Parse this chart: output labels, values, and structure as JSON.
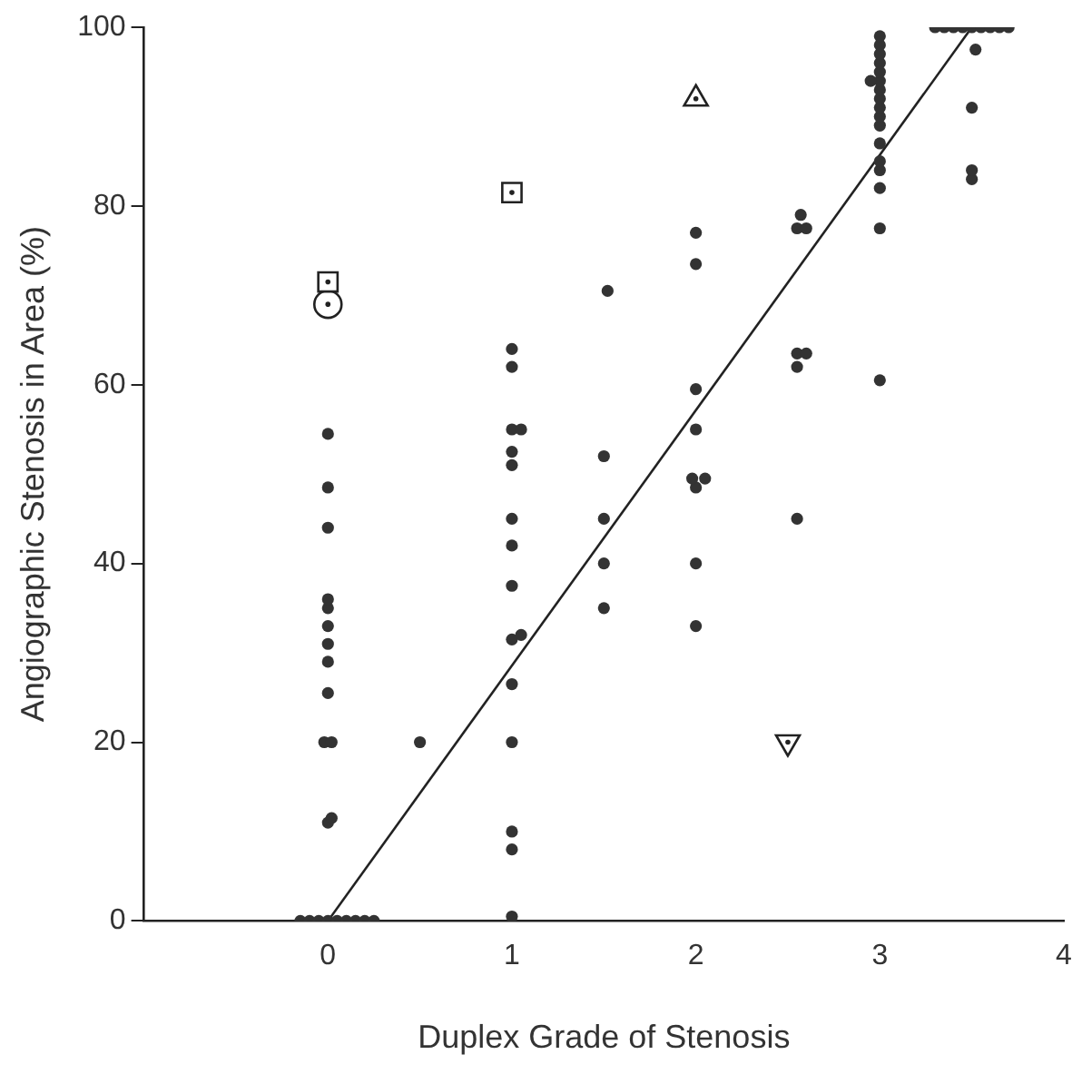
{
  "chart_data": {
    "type": "scatter",
    "xlabel": "Duplex Grade of Stenosis",
    "ylabel": "Angiographic Stenosis in Area (%)",
    "xlim": [
      -1,
      4
    ],
    "xticks": [
      0,
      1,
      2,
      3,
      4
    ],
    "ylim": [
      0,
      100
    ],
    "yticks": [
      0,
      20,
      40,
      60,
      80,
      100
    ],
    "grid": false,
    "legend": false,
    "series": [
      {
        "type": "scatter",
        "color": "#333333",
        "marker": "circle",
        "x": [
          -0.15,
          -0.1,
          -0.05,
          0,
          0.05,
          0.1,
          0.15,
          0.2,
          0.25,
          0,
          0.02,
          -0.02,
          0.02,
          0,
          0,
          0,
          0,
          0,
          0,
          0,
          0,
          0
        ],
        "values": [
          0,
          0,
          0,
          0,
          0,
          0,
          0,
          0,
          0,
          11,
          11.5,
          20,
          20,
          25.5,
          29,
          31,
          33,
          35,
          36,
          44,
          48.5,
          54.5
        ]
      },
      {
        "type": "scatter",
        "color": "#333333",
        "marker": "circle",
        "x": [
          0.5,
          1,
          1,
          1,
          1,
          1,
          1,
          1.05,
          1,
          1,
          1,
          1,
          1,
          1,
          1.05,
          1,
          1
        ],
        "values": [
          20,
          0.5,
          8,
          10,
          20,
          26.5,
          31.5,
          32,
          37.5,
          42,
          45,
          51,
          52.5,
          55,
          55,
          62,
          64
        ]
      },
      {
        "type": "scatter",
        "color": "#333333",
        "marker": "circle",
        "x": [
          1.5,
          1.5,
          1.5,
          1.5,
          1.52,
          2,
          2,
          2,
          1.98,
          2.05,
          2,
          2,
          2,
          2
        ],
        "values": [
          35,
          40,
          45,
          52,
          70.5,
          33,
          40,
          48.5,
          49.5,
          49.5,
          55,
          59.5,
          73.5,
          77
        ]
      },
      {
        "type": "scatter",
        "color": "#333333",
        "marker": "circle",
        "x": [
          2.55,
          2.55,
          2.55,
          2.6,
          2.55,
          2.6,
          2.57
        ],
        "values": [
          45,
          62,
          63.5,
          63.5,
          77.5,
          77.5,
          79
        ]
      },
      {
        "type": "scatter",
        "color": "#333333",
        "marker": "circle",
        "x": [
          3,
          3,
          3,
          3,
          3,
          3,
          3,
          3,
          3,
          3,
          3,
          3,
          2.95,
          3,
          3,
          3,
          3,
          3
        ],
        "values": [
          60.5,
          77.5,
          82,
          84,
          85,
          87,
          89,
          90,
          91,
          92,
          93,
          94,
          94,
          95,
          96,
          97,
          98,
          99
        ]
      },
      {
        "type": "scatter",
        "color": "#333333",
        "marker": "circle",
        "x": [
          3.5,
          3.5,
          3.5,
          3.52,
          3.3,
          3.35,
          3.4,
          3.45,
          3.5,
          3.55,
          3.6,
          3.65,
          3.7
        ],
        "values": [
          83,
          84,
          91,
          97.5,
          100,
          100,
          100,
          100,
          100,
          100,
          100,
          100,
          100
        ]
      },
      {
        "type": "scatter",
        "color": "#222222",
        "marker": "square",
        "x": [
          0,
          1
        ],
        "values": [
          71.5,
          81.5
        ]
      },
      {
        "type": "scatter",
        "color": "#222222",
        "marker": "circle",
        "x": [
          0
        ],
        "values": [
          69
        ]
      },
      {
        "type": "scatter",
        "color": "#222222",
        "marker": "triangle",
        "x": [
          2
        ],
        "values": [
          92
        ]
      },
      {
        "type": "scatter",
        "color": "#222222",
        "marker": "triangle_down",
        "x": [
          2.5
        ],
        "values": [
          20
        ]
      },
      {
        "type": "line",
        "color": "#222222",
        "marker": "none",
        "line_style": "solid",
        "x": [
          0,
          3.5
        ],
        "values": [
          0,
          100
        ]
      }
    ]
  }
}
